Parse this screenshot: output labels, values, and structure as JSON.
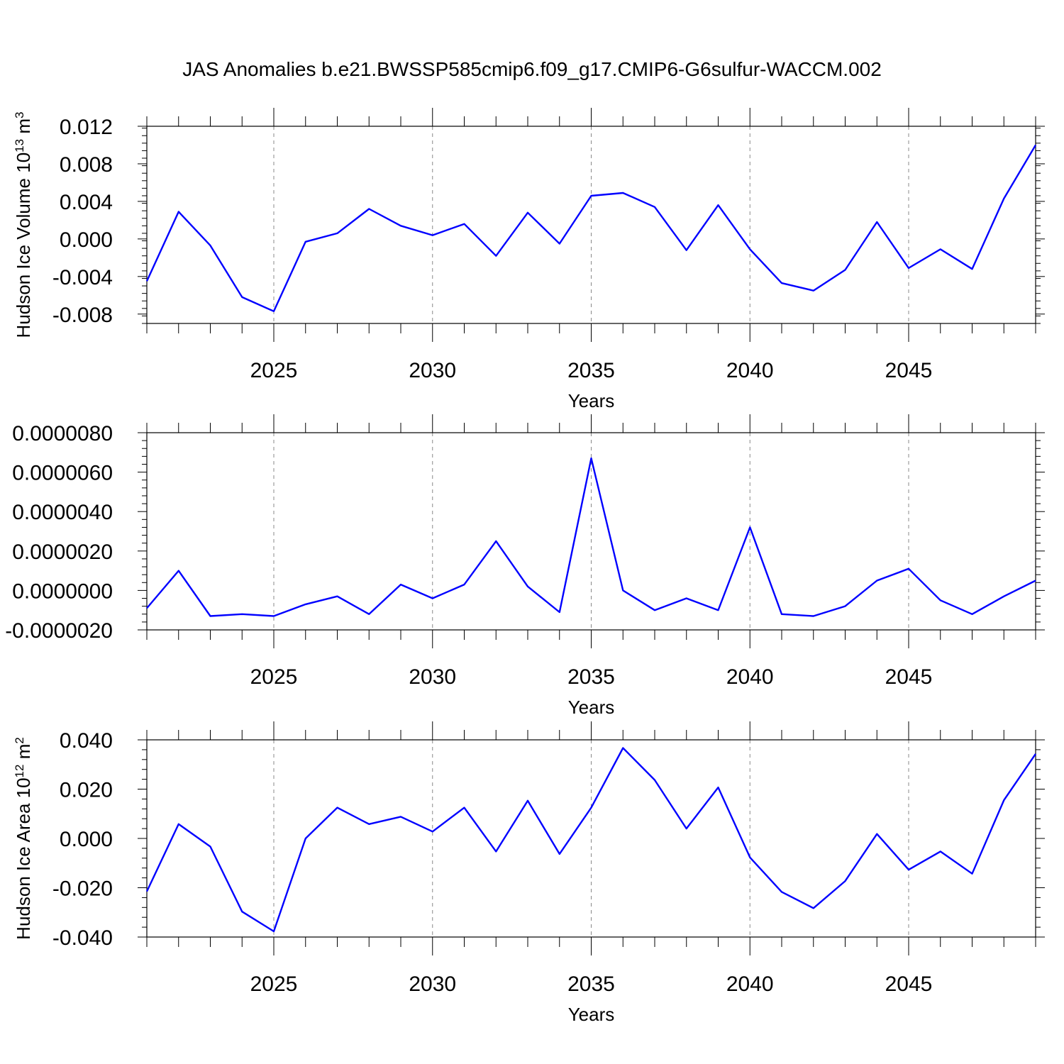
{
  "title": "JAS Anomalies b.e21.BWSSP585cmip6.f09_g17.CMIP6-G6sulfur-WACCM.002",
  "line_color": "#0000ff",
  "chart_data": [
    {
      "type": "line",
      "ylabel": "Hudson Ice Volume 10",
      "ylabel_sup": "13",
      "ylabel_unit": " m",
      "ylabel_unit_sup": "3",
      "xlabel": "Years",
      "xlim": [
        2021,
        2049
      ],
      "ylim": [
        -0.009,
        0.012
      ],
      "xticks": [
        2025,
        2030,
        2035,
        2040,
        2045
      ],
      "yticks": [
        -0.008,
        -0.004,
        0.0,
        0.004,
        0.008,
        0.012
      ],
      "yticklabels": [
        "-0.008",
        "-0.004",
        "0.000",
        "0.004",
        "0.008",
        "0.012"
      ],
      "x": [
        2021,
        2022,
        2023,
        2024,
        2025,
        2026,
        2027,
        2028,
        2029,
        2030,
        2031,
        2032,
        2033,
        2034,
        2035,
        2036,
        2037,
        2038,
        2039,
        2040,
        2041,
        2042,
        2043,
        2044,
        2045,
        2046,
        2047,
        2048,
        2049
      ],
      "values": [
        -0.0045,
        0.0029,
        -0.0007,
        -0.0062,
        -0.0077,
        -0.0003,
        0.0006,
        0.0032,
        0.0014,
        0.0004,
        0.0016,
        -0.0018,
        0.0028,
        -0.0005,
        0.0046,
        0.0049,
        0.0034,
        -0.0012,
        0.0036,
        -0.0011,
        -0.0047,
        -0.0055,
        -0.0033,
        0.0018,
        -0.0031,
        -0.0011,
        -0.0032,
        0.0043,
        0.01
      ]
    },
    {
      "type": "line",
      "ylabel": "",
      "xlabel": "Years",
      "xlim": [
        2021,
        2049
      ],
      "ylim": [
        -2e-06,
        8e-06
      ],
      "xticks": [
        2025,
        2030,
        2035,
        2040,
        2045
      ],
      "yticks": [
        -2e-06,
        0.0,
        2e-06,
        4e-06,
        6e-06,
        8e-06
      ],
      "yticklabels": [
        "-0.0000020",
        "0.0000000",
        "0.0000020",
        "0.0000040",
        "0.0000060",
        "0.0000080"
      ],
      "x": [
        2021,
        2022,
        2023,
        2024,
        2025,
        2026,
        2027,
        2028,
        2029,
        2030,
        2031,
        2032,
        2033,
        2034,
        2035,
        2036,
        2037,
        2038,
        2039,
        2040,
        2041,
        2042,
        2043,
        2044,
        2045,
        2046,
        2047,
        2048,
        2049
      ],
      "values": [
        -9e-07,
        1e-06,
        -1.3e-06,
        -1.2e-06,
        -1.3e-06,
        -7e-07,
        -3e-07,
        -1.2e-06,
        3e-07,
        -4e-07,
        3e-07,
        2.5e-06,
        2e-07,
        -1.1e-06,
        6.7e-06,
        0.0,
        -1e-06,
        -4e-07,
        -1e-06,
        3.2e-06,
        -1.2e-06,
        -1.3e-06,
        -8e-07,
        5e-07,
        1.1e-06,
        -5e-07,
        -1.2e-06,
        -3e-07,
        5e-07
      ]
    },
    {
      "type": "line",
      "ylabel": "Hudson Ice Area 10",
      "ylabel_sup": "12",
      "ylabel_unit": " m",
      "ylabel_unit_sup": "2",
      "xlabel": "Years",
      "xlim": [
        2021,
        2049
      ],
      "ylim": [
        -0.04,
        0.04
      ],
      "xticks": [
        2025,
        2030,
        2035,
        2040,
        2045
      ],
      "yticks": [
        -0.04,
        -0.02,
        0.0,
        0.02,
        0.04
      ],
      "yticklabels": [
        "-0.040",
        "-0.020",
        "0.000",
        "0.020",
        "0.040"
      ],
      "x": [
        2021,
        2022,
        2023,
        2024,
        2025,
        2026,
        2027,
        2028,
        2029,
        2030,
        2031,
        2032,
        2033,
        2034,
        2035,
        2036,
        2037,
        2038,
        2039,
        2040,
        2041,
        2042,
        2043,
        2044,
        2045,
        2046,
        2047,
        2048,
        2049
      ],
      "values": [
        -0.0215,
        0.0058,
        -0.0033,
        -0.0297,
        -0.0377,
        0.0,
        0.0125,
        0.0058,
        0.0088,
        0.0028,
        0.0125,
        -0.0053,
        0.0153,
        -0.0063,
        0.0125,
        0.0367,
        0.0237,
        0.004,
        0.0207,
        -0.0077,
        -0.0217,
        -0.0283,
        -0.0173,
        0.0018,
        -0.0127,
        -0.0053,
        -0.0143,
        0.0155,
        0.0343
      ]
    }
  ]
}
